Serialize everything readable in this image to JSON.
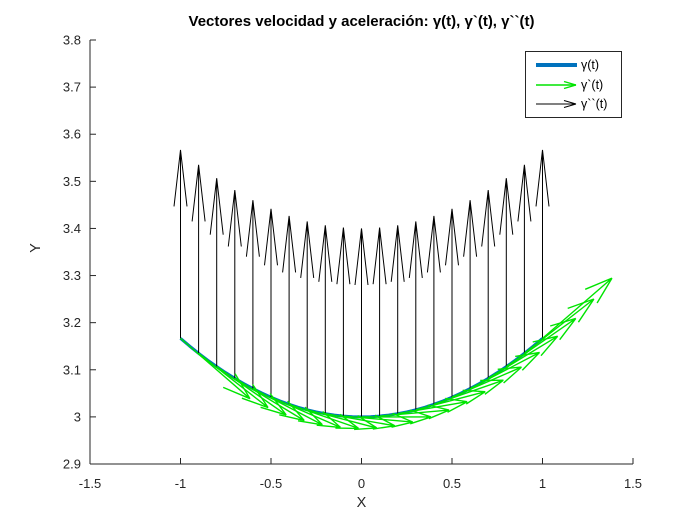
{
  "figure": {
    "background": "#ffffff"
  },
  "chart_data": {
    "type": "line+quiver",
    "title": "Vectores velocidad y aceleración: γ(t), γ`(t), γ``(t)",
    "xlabel": "X",
    "ylabel": "Y",
    "xlim": [
      -1.5,
      1.5
    ],
    "ylim": [
      2.9,
      3.8
    ],
    "xticks": [
      "-1.5",
      "-1",
      "-0.5",
      "0",
      "0.5",
      "1",
      "1.5"
    ],
    "yticks": [
      "2.9",
      "3",
      "3.1",
      "3.2",
      "3.3",
      "3.4",
      "3.5",
      "3.6",
      "3.7",
      "3.8"
    ],
    "grid": false,
    "box": false,
    "axis_color": "#262626",
    "tick_label_color": "#262626",
    "tick_length": 6,
    "legend_position": "top-right",
    "draw_order": [
      0,
      2,
      1
    ],
    "series": [
      {
        "key": "gamma-curve",
        "name": "γ(t)",
        "type": "line",
        "color": "#0072bd",
        "linewidth": 3,
        "x": [
          -1,
          -0.95,
          -0.9,
          -0.85,
          -0.8,
          -0.75,
          -0.7,
          -0.65,
          -0.6,
          -0.55,
          -0.5,
          -0.45,
          -0.4,
          -0.35,
          -0.3,
          -0.25,
          -0.2,
          -0.15,
          -0.1,
          -0.05,
          0,
          0.05,
          0.1,
          0.15,
          0.2,
          0.25,
          0.3,
          0.35,
          0.4,
          0.45,
          0.5,
          0.55,
          0.6,
          0.65,
          0.7,
          0.75,
          0.8,
          0.85,
          0.9,
          0.95,
          1
        ],
        "y": [
          3.1667,
          3.1504,
          3.135,
          3.1204,
          3.1067,
          3.0938,
          3.0817,
          3.0704,
          3.06,
          3.0504,
          3.0417,
          3.0338,
          3.0267,
          3.0204,
          3.015,
          3.0104,
          3.0067,
          3.0038,
          3.0017,
          3.0004,
          3.0,
          3.0004,
          3.0017,
          3.0038,
          3.0067,
          3.0104,
          3.015,
          3.0204,
          3.0267,
          3.0338,
          3.0417,
          3.0504,
          3.06,
          3.0704,
          3.0817,
          3.0938,
          3.1067,
          3.1204,
          3.135,
          3.1504,
          3.1667
        ]
      },
      {
        "key": "velocity-vector",
        "name": "γ`(t)",
        "type": "quiver",
        "color": "#00e400",
        "linewidth": 1.4,
        "head_frac": 0.3,
        "head_aspect": 0.33,
        "x": [
          -1,
          -0.9,
          -0.8,
          -0.7,
          -0.6,
          -0.5,
          -0.4,
          -0.3,
          -0.2,
          -0.1,
          0,
          0.1,
          0.2,
          0.3,
          0.4,
          0.5,
          0.6,
          0.7,
          0.8,
          0.9,
          1
        ],
        "y": [
          3.1667,
          3.135,
          3.1067,
          3.0817,
          3.06,
          3.0417,
          3.0267,
          3.015,
          3.0067,
          3.0017,
          3.0,
          3.0017,
          3.0067,
          3.015,
          3.0267,
          3.0417,
          3.06,
          3.0817,
          3.1067,
          3.135,
          3.1667
        ],
        "u": 0.384,
        "v": [
          -0.128,
          -0.1152,
          -0.1024,
          -0.0896,
          -0.0768,
          -0.064,
          -0.0512,
          -0.0384,
          -0.0256,
          -0.0128,
          0,
          0.0128,
          0.0256,
          0.0384,
          0.0512,
          0.064,
          0.0768,
          0.0896,
          0.1024,
          0.1152,
          0.128
        ]
      },
      {
        "key": "acceleration-vector",
        "name": "γ``(t)",
        "type": "quiver",
        "color": "#000000",
        "linewidth": 1,
        "head_frac": 0.3,
        "head_aspect": 0.115,
        "x": [
          -1,
          -0.9,
          -0.8,
          -0.7,
          -0.6,
          -0.5,
          -0.4,
          -0.3,
          -0.2,
          -0.1,
          0,
          0.1,
          0.2,
          0.3,
          0.4,
          0.5,
          0.6,
          0.7,
          0.8,
          0.9,
          1
        ],
        "y": [
          3.1667,
          3.135,
          3.1067,
          3.0817,
          3.06,
          3.0417,
          3.0267,
          3.015,
          3.0067,
          3.0017,
          3.0,
          3.0017,
          3.0067,
          3.015,
          3.0267,
          3.0417,
          3.06,
          3.0817,
          3.1067,
          3.135,
          3.1667
        ],
        "u": 0,
        "v": 0.4
      }
    ]
  }
}
